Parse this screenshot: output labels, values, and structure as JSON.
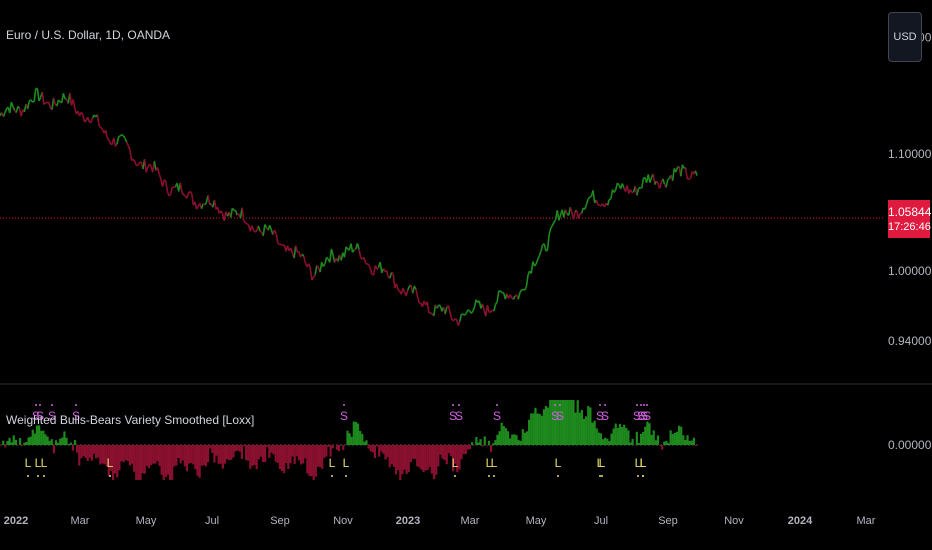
{
  "header": {
    "symbol_title": "Euro / U.S. Dollar, 1D, OANDA"
  },
  "indicator": {
    "title": "Weighted Bulls-Bears Variety Smoothed [Loxx]"
  },
  "currency_button": {
    "label": "USD"
  },
  "last_price": {
    "value": "1.05844",
    "countdown": "17:26:46"
  },
  "colors": {
    "bull": "#1e8a1e",
    "bear": "#8a1030",
    "signal_s": "#d060e0",
    "signal_l": "#e6dc6e",
    "last_line": "#e0193e"
  },
  "chart_data": [
    {
      "type": "line",
      "title": "Euro / U.S. Dollar, 1D, OANDA",
      "y_ticks": [
        "1.20000",
        "1.10000",
        "1.00000",
        "0.94000"
      ],
      "ylim": [
        0.915,
        1.215
      ],
      "x_ticks": [
        "2022",
        "Mar",
        "May",
        "Jul",
        "Sep",
        "Nov",
        "2023",
        "Mar",
        "May",
        "Jul",
        "Sep",
        "Nov",
        "2024",
        "Mar"
      ],
      "x": [
        "2022-01",
        "2022-02",
        "2022-03",
        "2022-04",
        "2022-05",
        "2022-06",
        "2022-07",
        "2022-08",
        "2022-09",
        "2022-10",
        "2022-11",
        "2022-12",
        "2023-01",
        "2023-02",
        "2023-03",
        "2023-04",
        "2023-05",
        "2023-06",
        "2023-07",
        "2023-08",
        "2023-09"
      ],
      "series": [
        {
          "values": [
            1.133,
            1.147,
            1.145,
            1.12,
            1.095,
            1.07,
            1.058,
            1.045,
            1.025,
            1.0,
            1.02,
            1.0,
            0.975,
            0.96,
            0.97,
            0.985,
            1.045,
            1.06,
            1.07,
            1.08,
            1.085
          ]
        }
      ],
      "last_value": 1.05844
    },
    {
      "type": "bar",
      "title": "Weighted Bulls-Bears Variety Smoothed [Loxx]",
      "y_ticks": [
        "0.00000"
      ],
      "signals": [
        "S",
        "S",
        "S",
        "S",
        "L",
        "L",
        "L",
        "L",
        "S",
        "L",
        "L",
        "S",
        "S",
        "S",
        "L",
        "L",
        "S",
        "L",
        "S",
        "S",
        "L",
        "L",
        "S",
        "S",
        "L",
        "L",
        "S",
        "S",
        "S",
        "L",
        "L"
      ]
    }
  ]
}
